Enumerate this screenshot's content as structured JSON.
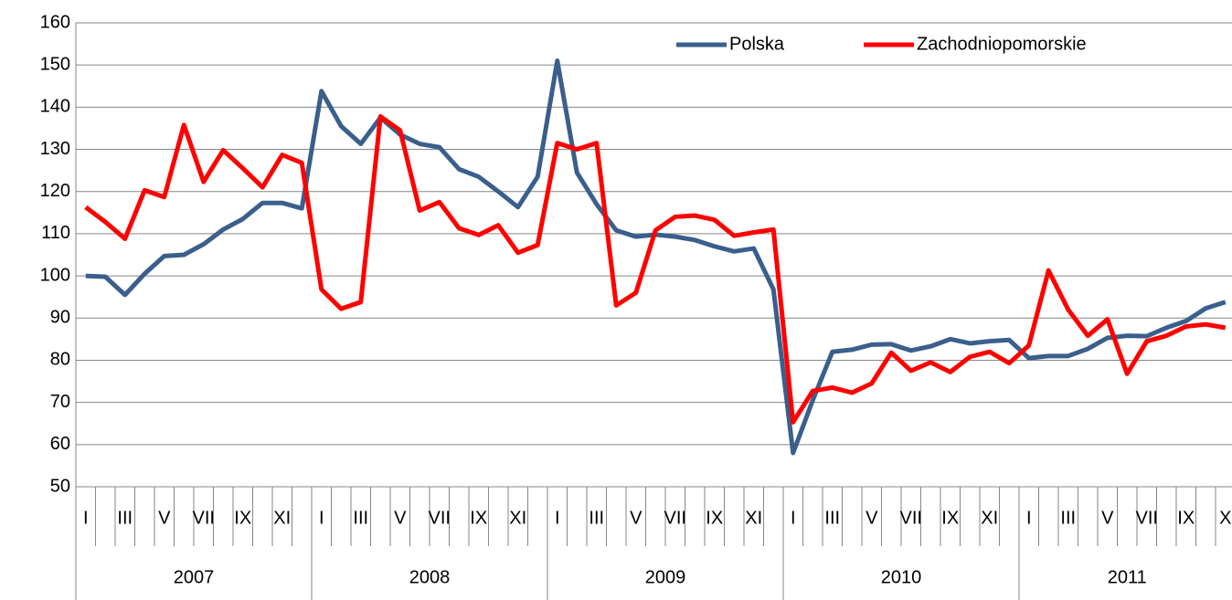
{
  "chart_data": {
    "type": "line",
    "categories": [
      "I",
      null,
      "III",
      null,
      "V",
      null,
      "VII",
      null,
      "IX",
      null,
      "XI",
      null,
      "I",
      null,
      "III",
      null,
      "V",
      null,
      "VII",
      null,
      "IX",
      null,
      "XI",
      null,
      "I",
      null,
      "III",
      null,
      "V",
      null,
      "VII",
      null,
      "IX",
      null,
      "XI",
      null,
      "I",
      null,
      "III",
      null,
      "V",
      null,
      "VII",
      null,
      "IX",
      null,
      "XI",
      null,
      "I",
      null,
      "III",
      null,
      "V",
      null,
      "VII",
      null,
      "IX",
      null,
      "X"
    ],
    "years": [
      "2007",
      "2008",
      "2009",
      "2010",
      "2011"
    ],
    "series": [
      {
        "name": "Polska",
        "color": "#3a5f8c",
        "values": [
          100,
          99.8,
          95.5,
          100.5,
          104.7,
          105,
          107.5,
          111,
          113.5,
          117.3,
          117.3,
          116,
          143.8,
          135.5,
          131.3,
          137.5,
          133.5,
          131.3,
          130.5,
          125.3,
          123.5,
          120,
          116.3,
          123.5,
          151,
          124.5,
          117,
          110.8,
          109.3,
          109.8,
          109.3,
          108.5,
          107,
          105.8,
          106.5,
          96.8,
          58,
          70.5,
          82,
          82.5,
          83.7,
          83.8,
          82.3,
          83.3,
          85,
          84,
          84.5,
          84.8,
          80.5,
          81,
          81,
          82.7,
          85.3,
          85.8,
          85.7,
          87.7,
          89.3,
          92.3,
          93.8
        ]
      },
      {
        "name": "Zachodniopomorskie",
        "color": "#ff0000",
        "values": [
          116.3,
          112.8,
          108.8,
          120.3,
          118.7,
          135.8,
          122.3,
          129.8,
          125.5,
          121,
          128.7,
          126.8,
          96.8,
          92.2,
          93.8,
          137.8,
          134.5,
          115.5,
          117.5,
          111.3,
          109.7,
          112,
          105.5,
          107.3,
          131.5,
          130,
          131.5,
          93,
          96,
          110.8,
          114,
          114.3,
          113.3,
          109.5,
          110.3,
          111,
          65.3,
          72.7,
          73.5,
          72.3,
          74.5,
          81.8,
          77.5,
          79.5,
          77.2,
          80.8,
          82,
          79.3,
          83.5,
          101.3,
          92,
          85.8,
          89.7,
          76.8,
          84.5,
          85.8,
          88,
          88.5,
          87.7
        ]
      }
    ],
    "ylim": [
      50,
      160
    ],
    "yticks": [
      50,
      60,
      70,
      80,
      90,
      100,
      110,
      120,
      130,
      140,
      150,
      160
    ],
    "grid": true
  }
}
